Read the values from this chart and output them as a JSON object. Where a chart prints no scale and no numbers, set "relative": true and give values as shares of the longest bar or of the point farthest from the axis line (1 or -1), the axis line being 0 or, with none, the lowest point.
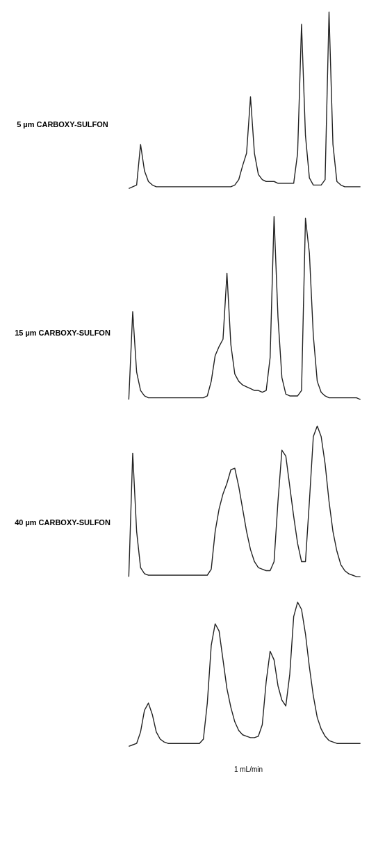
{
  "chart_data": [
    {
      "type": "line",
      "title": "5 µm CARBOXY-SULFON",
      "relative": true,
      "color": "#222222",
      "categories": [
        null,
        null,
        null,
        null,
        null,
        null,
        null,
        null,
        null,
        null,
        null,
        null,
        null,
        null,
        null,
        null,
        null,
        null,
        null,
        null,
        null,
        null,
        null,
        null,
        null,
        null,
        null,
        null,
        null,
        null,
        null,
        null,
        null,
        null,
        null,
        null,
        null,
        null,
        null,
        null,
        null,
        null,
        null,
        null,
        null,
        null,
        null,
        null,
        null,
        null,
        null,
        null,
        null,
        null,
        null,
        null,
        null,
        null,
        null,
        null
      ],
      "values": [
        0.0,
        0.01,
        0.02,
        0.25,
        0.1,
        0.04,
        0.02,
        0.01,
        0.01,
        0.01,
        0.01,
        0.01,
        0.01,
        0.01,
        0.01,
        0.01,
        0.01,
        0.01,
        0.01,
        0.01,
        0.01,
        0.01,
        0.01,
        0.01,
        0.01,
        0.01,
        0.01,
        0.02,
        0.05,
        0.13,
        0.2,
        0.52,
        0.2,
        0.08,
        0.05,
        0.04,
        0.04,
        0.04,
        0.03,
        0.03,
        0.03,
        0.03,
        0.03,
        0.2,
        0.93,
        0.3,
        0.06,
        0.02,
        0.02,
        0.02,
        0.05,
        1.0,
        0.25,
        0.04,
        0.02,
        0.01,
        0.01,
        0.01,
        0.01,
        0.01
      ]
    },
    {
      "type": "line",
      "title": "15 µm CARBOXY-SULFON",
      "relative": true,
      "color": "#222222",
      "categories": [
        null,
        null,
        null,
        null,
        null,
        null,
        null,
        null,
        null,
        null,
        null,
        null,
        null,
        null,
        null,
        null,
        null,
        null,
        null,
        null,
        null,
        null,
        null,
        null,
        null,
        null,
        null,
        null,
        null,
        null,
        null,
        null,
        null,
        null,
        null,
        null,
        null,
        null,
        null,
        null,
        null,
        null,
        null,
        null,
        null,
        null,
        null,
        null,
        null,
        null,
        null,
        null,
        null,
        null,
        null,
        null,
        null,
        null,
        null,
        null
      ],
      "values": [
        0.0,
        0.48,
        0.15,
        0.05,
        0.02,
        0.01,
        0.01,
        0.01,
        0.01,
        0.01,
        0.01,
        0.01,
        0.01,
        0.01,
        0.01,
        0.01,
        0.01,
        0.01,
        0.01,
        0.01,
        0.02,
        0.1,
        0.24,
        0.29,
        0.33,
        0.69,
        0.3,
        0.14,
        0.1,
        0.08,
        0.07,
        0.06,
        0.05,
        0.05,
        0.04,
        0.05,
        0.23,
        1.0,
        0.45,
        0.12,
        0.03,
        0.02,
        0.02,
        0.02,
        0.05,
        0.99,
        0.8,
        0.35,
        0.1,
        0.04,
        0.02,
        0.01,
        0.01,
        0.01,
        0.01,
        0.01,
        0.01,
        0.01,
        0.01,
        0.0
      ]
    },
    {
      "type": "line",
      "title": "40 µm CARBOXY-SULFON",
      "relative": true,
      "color": "#222222",
      "categories": [
        null,
        null,
        null,
        null,
        null,
        null,
        null,
        null,
        null,
        null,
        null,
        null,
        null,
        null,
        null,
        null,
        null,
        null,
        null,
        null,
        null,
        null,
        null,
        null,
        null,
        null,
        null,
        null,
        null,
        null,
        null,
        null,
        null,
        null,
        null,
        null,
        null,
        null,
        null,
        null,
        null,
        null,
        null,
        null,
        null,
        null,
        null,
        null,
        null,
        null,
        null,
        null,
        null,
        null,
        null,
        null,
        null,
        null,
        null,
        null
      ],
      "values": [
        0.0,
        0.82,
        0.3,
        0.06,
        0.02,
        0.01,
        0.01,
        0.01,
        0.01,
        0.01,
        0.01,
        0.01,
        0.01,
        0.01,
        0.01,
        0.01,
        0.01,
        0.01,
        0.01,
        0.01,
        0.01,
        0.05,
        0.3,
        0.45,
        0.55,
        0.62,
        0.71,
        0.72,
        0.6,
        0.45,
        0.3,
        0.18,
        0.1,
        0.06,
        0.05,
        0.04,
        0.04,
        0.1,
        0.5,
        0.84,
        0.8,
        0.6,
        0.4,
        0.22,
        0.1,
        0.1,
        0.5,
        0.93,
        1.0,
        0.93,
        0.75,
        0.5,
        0.3,
        0.17,
        0.08,
        0.04,
        0.02,
        0.01,
        0.0,
        0.0
      ]
    },
    {
      "type": "line",
      "relative": true,
      "color": "#222222",
      "annotations": [
        "1 mL/min"
      ],
      "categories": [
        null,
        null,
        null,
        null,
        null,
        null,
        null,
        null,
        null,
        null,
        null,
        null,
        null,
        null,
        null,
        null,
        null,
        null,
        null,
        null,
        null,
        null,
        null,
        null,
        null,
        null,
        null,
        null,
        null,
        null,
        null,
        null,
        null,
        null,
        null,
        null,
        null,
        null,
        null,
        null,
        null,
        null,
        null,
        null,
        null,
        null,
        null,
        null,
        null,
        null,
        null,
        null,
        null,
        null,
        null,
        null,
        null,
        null,
        null,
        null
      ],
      "values": [
        0.0,
        0.01,
        0.02,
        0.1,
        0.25,
        0.3,
        0.22,
        0.1,
        0.05,
        0.03,
        0.02,
        0.02,
        0.02,
        0.02,
        0.02,
        0.02,
        0.02,
        0.02,
        0.02,
        0.05,
        0.3,
        0.7,
        0.85,
        0.8,
        0.6,
        0.4,
        0.27,
        0.17,
        0.11,
        0.08,
        0.07,
        0.06,
        0.06,
        0.07,
        0.15,
        0.45,
        0.66,
        0.6,
        0.42,
        0.32,
        0.28,
        0.5,
        0.9,
        1.0,
        0.95,
        0.78,
        0.55,
        0.35,
        0.2,
        0.12,
        0.07,
        0.04,
        0.03,
        0.02,
        0.02,
        0.02,
        0.02,
        0.02,
        0.02,
        0.02
      ]
    }
  ]
}
